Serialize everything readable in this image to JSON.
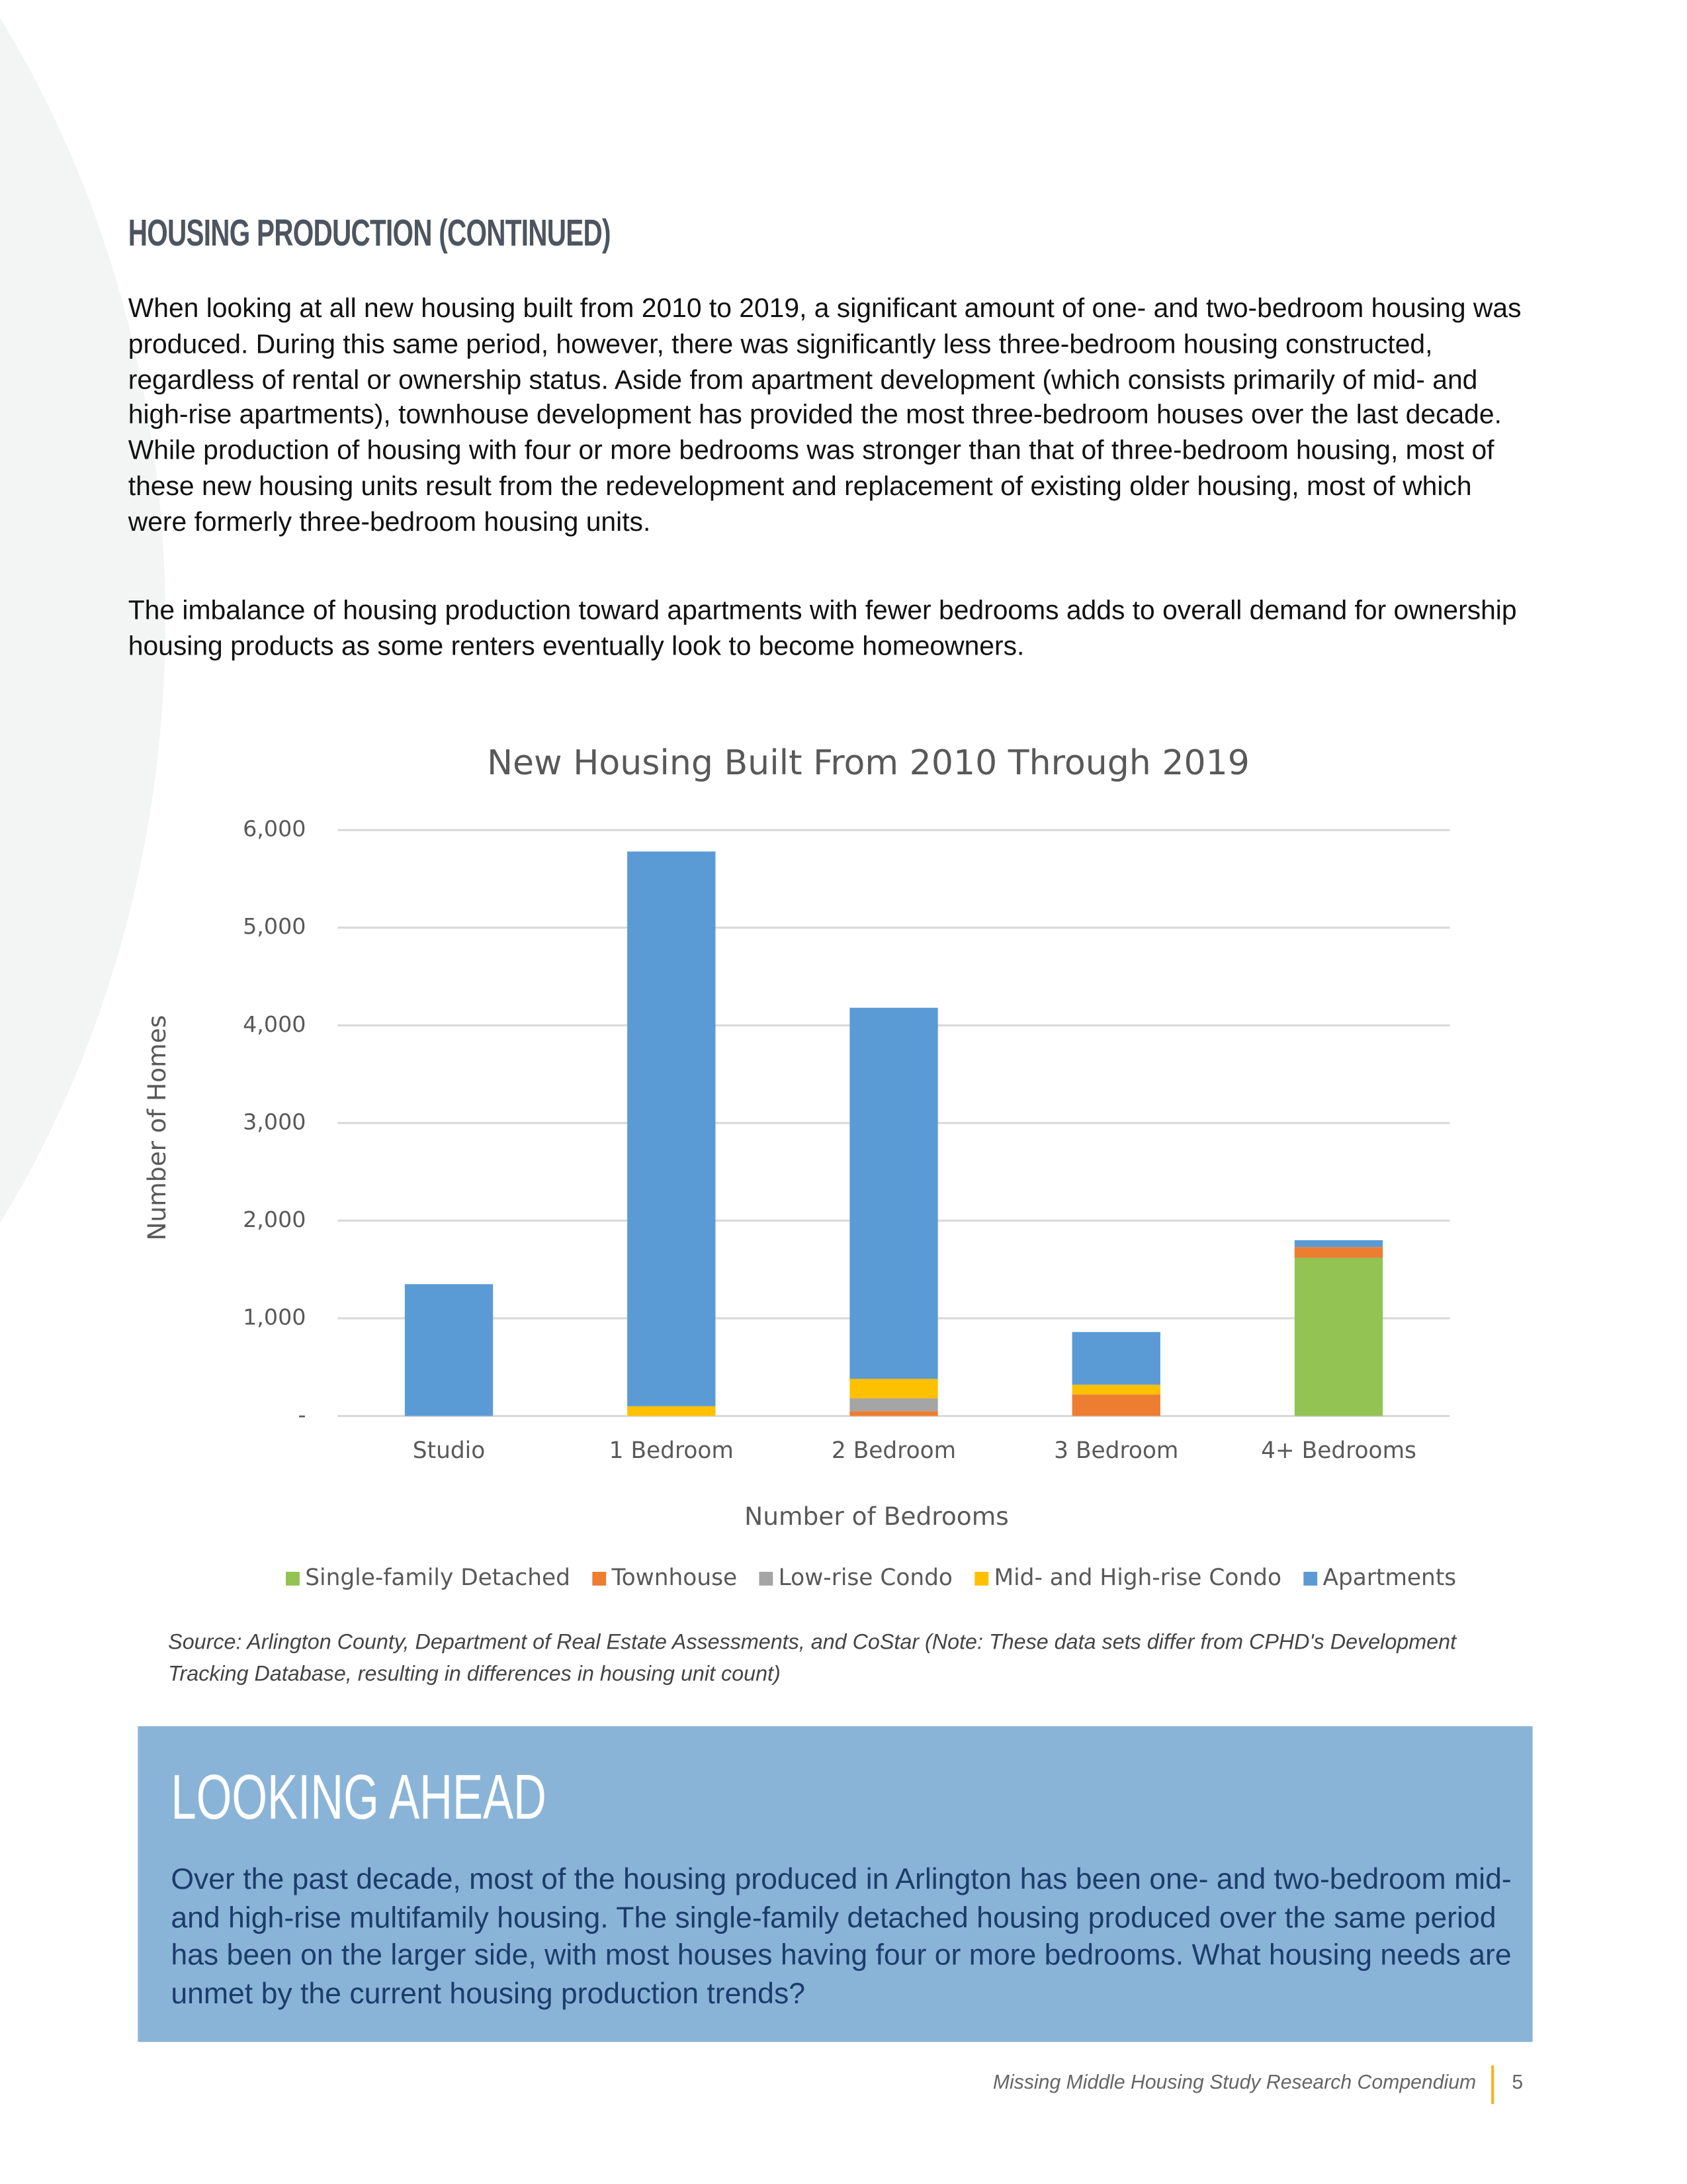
{
  "header": {
    "title": "HOUSING PRODUCTION (CONTINUED)"
  },
  "paragraphs": [
    "When looking at all new housing built from 2010 to 2019, a significant amount of one- and two-bedroom housing was produced. During this same period, however, there was significantly less three-bedroom housing constructed, regardless of rental or ownership status. Aside from apartment development (which consists primarily of mid- and high-rise apartments), townhouse development has provided the most three-bedroom houses over the last decade. While production of housing with four or more bedrooms was stronger than that of three-bedroom housing, most of these new housing units result from the redevelopment and replacement of existing older housing, most of which were formerly three-bedroom housing units.",
    "The imbalance of housing production toward apartments with fewer bedrooms adds to overall demand for ownership housing products as some renters eventually look to become homeowners."
  ],
  "chart_data": {
    "type": "stacked-bar",
    "title": "New Housing Built From 2010 Through 2019",
    "x_label": "Number of Bedrooms",
    "y_label": "Number of Homes",
    "categories": [
      "Studio",
      "1 Bedroom",
      "2 Bedroom",
      "3 Bedroom",
      "4+ Bedrooms"
    ],
    "series": [
      {
        "name": "Single-family Detached",
        "color": "#92c353",
        "values": [
          0,
          0,
          0,
          0,
          1620
        ]
      },
      {
        "name": "Townhouse",
        "color": "#ed7d31",
        "values": [
          0,
          0,
          50,
          220,
          110
        ]
      },
      {
        "name": "Low-rise Condo",
        "color": "#a5a5a5",
        "values": [
          0,
          0,
          130,
          0,
          0
        ]
      },
      {
        "name": "Mid- and High-rise Condo",
        "color": "#ffc000",
        "values": [
          0,
          100,
          200,
          100,
          0
        ]
      },
      {
        "name": "Apartments",
        "color": "#5b9bd5",
        "values": [
          1350,
          5680,
          3800,
          540,
          70
        ]
      }
    ],
    "ylim": [
      0,
      6000
    ],
    "yticks": [
      {
        "value": 0,
        "label": "-"
      },
      {
        "value": 1000,
        "label": "1,000"
      },
      {
        "value": 2000,
        "label": "2,000"
      },
      {
        "value": 3000,
        "label": "3,000"
      },
      {
        "value": 4000,
        "label": "4,000"
      },
      {
        "value": 5000,
        "label": "5,000"
      },
      {
        "value": 6000,
        "label": "6,000"
      }
    ],
    "grid": true,
    "legend": "bottom"
  },
  "source": "Source: Arlington County, Department of Real Estate Assessments, and CoStar (Note: These data sets differ from CPHD's Development Tracking Database, resulting in differences in housing unit count)",
  "looking_ahead": {
    "title": "LOOKING AHEAD",
    "text": "Over the past decade, most of the housing produced in Arlington has been one- and two-bedroom mid- and high-rise multifamily housing. The single-family detached housing produced over the same period has been on the larger side, with most houses having four or more bedrooms. What housing needs are unmet by the current housing production trends?"
  },
  "footer": {
    "title": "Missing Middle Housing Study Research Compendium",
    "page": "5"
  }
}
